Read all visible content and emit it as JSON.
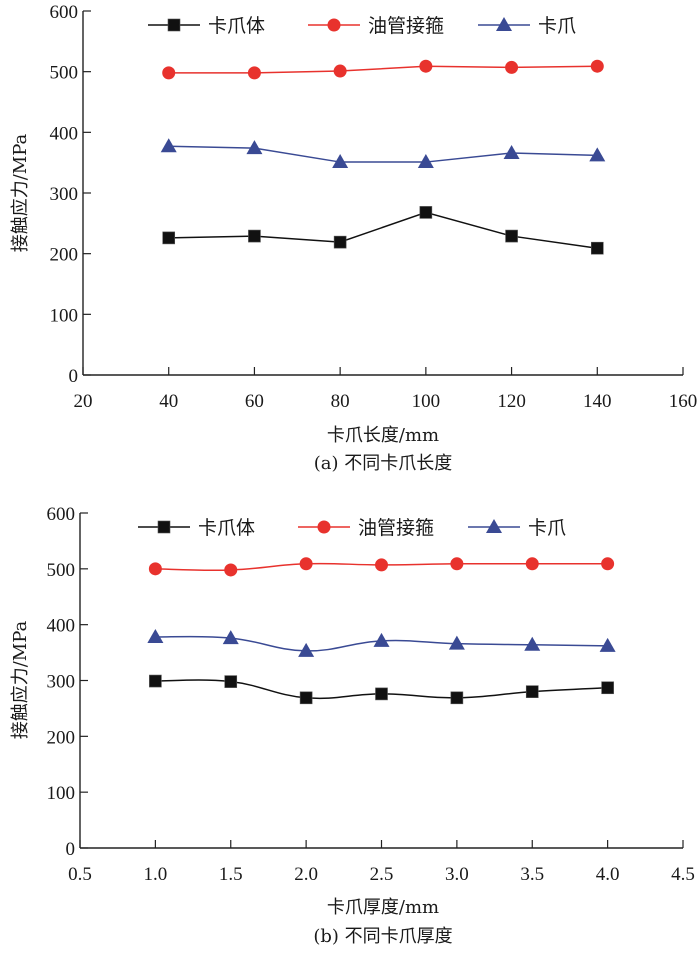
{
  "chart_data": [
    {
      "type": "line",
      "caption": "(a) 不同卡爪长度",
      "xlabel": "卡爪长度/mm",
      "ylabel": "接触应力/MPa",
      "xlim": [
        20,
        160
      ],
      "ylim": [
        0,
        600
      ],
      "xticks": [
        20,
        40,
        60,
        80,
        100,
        120,
        140,
        160
      ],
      "xtick_labels": [
        "20",
        "40",
        "60",
        "80",
        "100",
        "120",
        "140",
        "160"
      ],
      "yticks": [
        0,
        100,
        200,
        300,
        400,
        500,
        600
      ],
      "ytick_labels": [
        "0",
        "100",
        "200",
        "300",
        "400",
        "500",
        "600"
      ],
      "x": [
        40,
        60,
        80,
        100,
        120,
        140
      ],
      "smooth": false,
      "legend_position": "top",
      "series": [
        {
          "name": "卡爪体",
          "marker": "square",
          "color": "#111111",
          "values": [
            226,
            229,
            219,
            268,
            229,
            209
          ]
        },
        {
          "name": "油管接箍",
          "marker": "circle",
          "color": "#e8322d",
          "values": [
            498,
            498,
            501,
            509,
            507,
            509
          ]
        },
        {
          "name": "卡爪",
          "marker": "triangle",
          "color": "#3a4a94",
          "values": [
            377,
            374,
            351,
            351,
            366,
            362
          ]
        }
      ]
    },
    {
      "type": "line",
      "caption": "(b) 不同卡爪厚度",
      "xlabel": "卡爪厚度/mm",
      "ylabel": "接触应力/MPa",
      "xlim": [
        0.5,
        4.5
      ],
      "ylim": [
        0,
        600
      ],
      "xticks": [
        0.5,
        1.0,
        1.5,
        2.0,
        2.5,
        3.0,
        3.5,
        4.0,
        4.5
      ],
      "xtick_labels": [
        "0.5",
        "1.0",
        "1.5",
        "2.0",
        "2.5",
        "3.0",
        "3.5",
        "4.0",
        "4.5"
      ],
      "yticks": [
        0,
        100,
        200,
        300,
        400,
        500,
        600
      ],
      "ytick_labels": [
        "0",
        "100",
        "200",
        "300",
        "400",
        "500",
        "600"
      ],
      "x": [
        1.0,
        1.5,
        2.0,
        2.5,
        3.0,
        3.5,
        4.0
      ],
      "smooth": true,
      "legend_position": "top",
      "series": [
        {
          "name": "卡爪体",
          "marker": "square",
          "color": "#111111",
          "values": [
            299,
            298,
            269,
            276,
            269,
            280,
            287
          ]
        },
        {
          "name": "油管接箍",
          "marker": "circle",
          "color": "#e8322d",
          "values": [
            500,
            498,
            509,
            507,
            509,
            509,
            509
          ]
        },
        {
          "name": "卡爪",
          "marker": "triangle",
          "color": "#3a4a94",
          "values": [
            378,
            376,
            353,
            371,
            366,
            364,
            362
          ]
        }
      ]
    }
  ]
}
